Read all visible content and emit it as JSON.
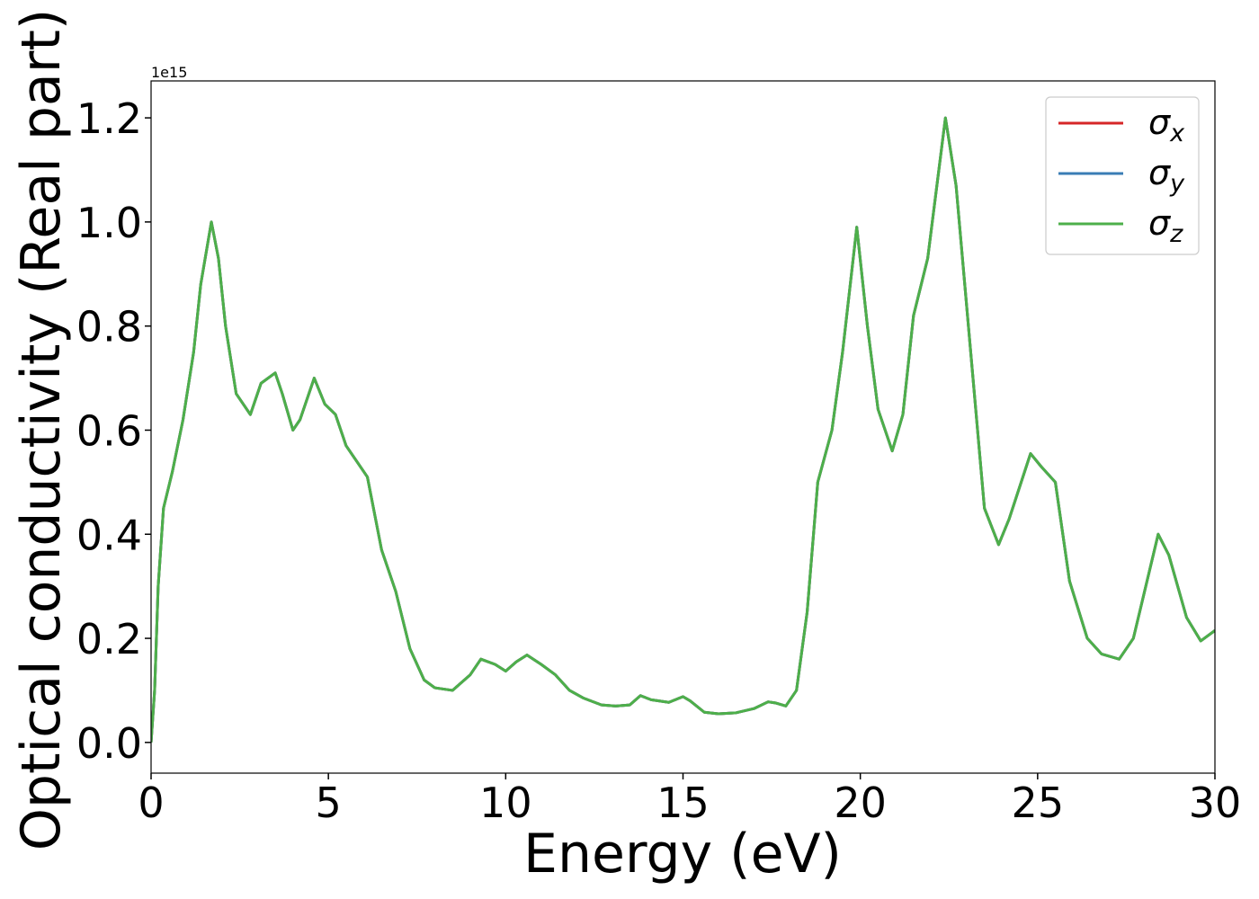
{
  "chart_data": {
    "type": "line",
    "xlabel": "Energy (eV)",
    "ylabel": "Optical conductivity (Real part)",
    "offset_text": "1e15",
    "x": [
      0,
      0.1,
      0.2,
      0.35,
      0.6,
      0.9,
      1.2,
      1.4,
      1.7,
      1.9,
      2.1,
      2.4,
      2.8,
      3.1,
      3.5,
      3.7,
      4.0,
      4.2,
      4.6,
      4.9,
      5.2,
      5.5,
      5.8,
      6.1,
      6.5,
      6.9,
      7.3,
      7.7,
      8.0,
      8.5,
      9.0,
      9.3,
      9.7,
      10.0,
      10.3,
      10.6,
      11.0,
      11.4,
      11.8,
      12.2,
      12.7,
      13.1,
      13.5,
      13.8,
      14.1,
      14.6,
      15.0,
      15.2,
      15.6,
      16.0,
      16.5,
      17.0,
      17.4,
      17.6,
      17.9,
      18.2,
      18.5,
      18.8,
      19.2,
      19.5,
      19.9,
      20.2,
      20.5,
      20.9,
      21.2,
      21.5,
      21.9,
      22.4,
      22.7,
      23.1,
      23.5,
      23.9,
      24.2,
      24.8,
      25.1,
      25.5,
      25.9,
      26.4,
      26.8,
      27.3,
      27.7,
      28.4,
      28.7,
      29.2,
      29.6,
      30.0
    ],
    "series": [
      {
        "name": "σx",
        "color": "#d62728",
        "values": [
          0.0,
          0.1,
          0.3,
          0.45,
          0.52,
          0.62,
          0.75,
          0.88,
          1.0,
          0.93,
          0.8,
          0.67,
          0.63,
          0.69,
          0.71,
          0.67,
          0.6,
          0.62,
          0.7,
          0.65,
          0.63,
          0.57,
          0.54,
          0.51,
          0.37,
          0.29,
          0.18,
          0.12,
          0.105,
          0.1,
          0.13,
          0.16,
          0.15,
          0.137,
          0.155,
          0.168,
          0.15,
          0.13,
          0.1,
          0.085,
          0.072,
          0.07,
          0.072,
          0.09,
          0.082,
          0.077,
          0.088,
          0.08,
          0.058,
          0.055,
          0.057,
          0.065,
          0.078,
          0.076,
          0.07,
          0.1,
          0.25,
          0.5,
          0.6,
          0.75,
          0.99,
          0.8,
          0.64,
          0.56,
          0.63,
          0.82,
          0.93,
          1.2,
          1.07,
          0.76,
          0.45,
          0.38,
          0.43,
          0.555,
          0.53,
          0.5,
          0.31,
          0.2,
          0.17,
          0.16,
          0.2,
          0.4,
          0.36,
          0.24,
          0.195,
          0.215
        ]
      },
      {
        "name": "σy",
        "color": "#3a7db5",
        "values": [
          0.0,
          0.1,
          0.3,
          0.45,
          0.52,
          0.62,
          0.75,
          0.88,
          1.0,
          0.93,
          0.8,
          0.67,
          0.63,
          0.69,
          0.71,
          0.67,
          0.6,
          0.62,
          0.7,
          0.65,
          0.63,
          0.57,
          0.54,
          0.51,
          0.37,
          0.29,
          0.18,
          0.12,
          0.105,
          0.1,
          0.13,
          0.16,
          0.15,
          0.137,
          0.155,
          0.168,
          0.15,
          0.13,
          0.1,
          0.085,
          0.072,
          0.07,
          0.072,
          0.09,
          0.082,
          0.077,
          0.088,
          0.08,
          0.058,
          0.055,
          0.057,
          0.065,
          0.078,
          0.076,
          0.07,
          0.1,
          0.25,
          0.5,
          0.6,
          0.75,
          0.99,
          0.8,
          0.64,
          0.56,
          0.63,
          0.82,
          0.93,
          1.2,
          1.07,
          0.76,
          0.45,
          0.38,
          0.43,
          0.555,
          0.53,
          0.5,
          0.31,
          0.2,
          0.17,
          0.16,
          0.2,
          0.4,
          0.36,
          0.24,
          0.195,
          0.215
        ]
      },
      {
        "name": "σz",
        "color": "#4daf4a",
        "values": [
          0.0,
          0.1,
          0.3,
          0.45,
          0.52,
          0.62,
          0.75,
          0.88,
          1.0,
          0.93,
          0.8,
          0.67,
          0.63,
          0.69,
          0.71,
          0.67,
          0.6,
          0.62,
          0.7,
          0.65,
          0.63,
          0.57,
          0.54,
          0.51,
          0.37,
          0.29,
          0.18,
          0.12,
          0.105,
          0.1,
          0.13,
          0.16,
          0.15,
          0.137,
          0.155,
          0.168,
          0.15,
          0.13,
          0.1,
          0.085,
          0.072,
          0.07,
          0.072,
          0.09,
          0.082,
          0.077,
          0.088,
          0.08,
          0.058,
          0.055,
          0.057,
          0.065,
          0.078,
          0.076,
          0.07,
          0.1,
          0.25,
          0.5,
          0.6,
          0.75,
          0.99,
          0.8,
          0.64,
          0.56,
          0.63,
          0.82,
          0.93,
          1.2,
          1.07,
          0.76,
          0.45,
          0.38,
          0.43,
          0.555,
          0.53,
          0.5,
          0.31,
          0.2,
          0.17,
          0.16,
          0.2,
          0.4,
          0.36,
          0.24,
          0.195,
          0.215
        ]
      }
    ],
    "xlim": [
      0,
      30
    ],
    "xticks": [
      0,
      5,
      10,
      15,
      20,
      25,
      30
    ],
    "ylim": [
      -0.059,
      1.271
    ],
    "yticks": [
      {
        "value": 0,
        "label": "0.0"
      },
      0.2,
      0.4,
      0.6,
      0.8,
      {
        "value": 1,
        "label": "1.0"
      },
      1.2
    ],
    "grid": false,
    "legend": "upper right"
  }
}
